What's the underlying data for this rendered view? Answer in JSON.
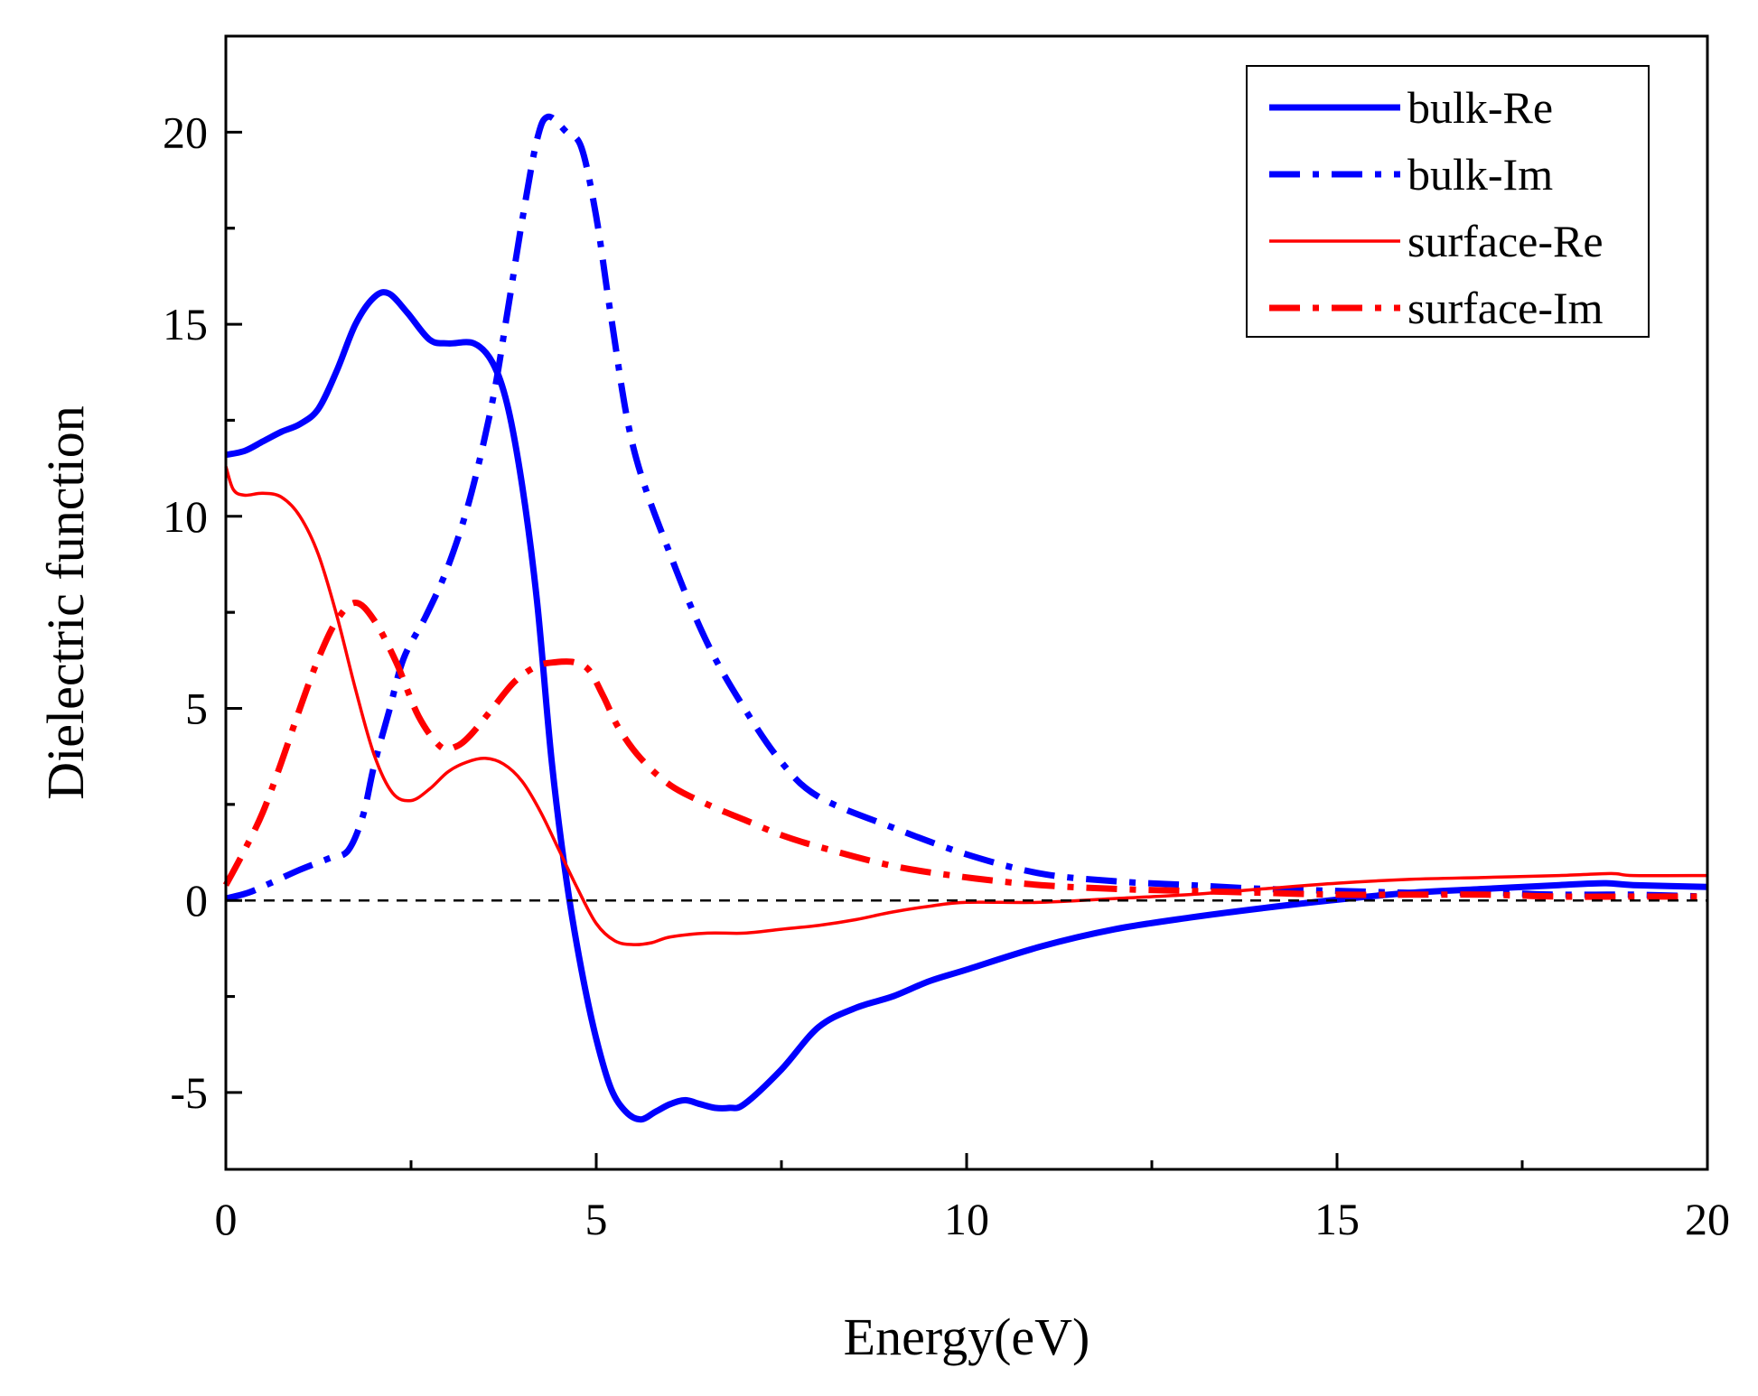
{
  "chart_data": {
    "type": "line",
    "title": "",
    "xlabel": "Energy(eV)",
    "ylabel": "Dielectric function",
    "xlim": [
      0,
      20
    ],
    "ylim": [
      -7,
      22.5
    ],
    "xticks": [
      0,
      5,
      10,
      15,
      20
    ],
    "xtick_labels": [
      "0",
      "5",
      "10",
      "15",
      "20"
    ],
    "yticks": [
      -5,
      0,
      5,
      10,
      15,
      20
    ],
    "ytick_labels": [
      "-5",
      "0",
      "5",
      "10",
      "15",
      "20"
    ],
    "grid": false,
    "legend_position": "top-right",
    "reference_line": {
      "y": 0,
      "style": "dashed",
      "color": "#000000"
    },
    "series": [
      {
        "name": "bulk-Re",
        "color": "#0000FF",
        "style": "solid-thick",
        "x": [
          0,
          0.25,
          0.5,
          0.75,
          1,
          1.25,
          1.5,
          1.75,
          2,
          2.2,
          2.45,
          2.75,
          3.0,
          3.35,
          3.6,
          3.8,
          4.0,
          4.2,
          4.4,
          4.6,
          4.8,
          5.0,
          5.2,
          5.4,
          5.6,
          5.8,
          6.0,
          6.2,
          6.4,
          6.6,
          6.8,
          7.0,
          7.5,
          8.0,
          8.5,
          9.0,
          9.5,
          10,
          11,
          12,
          13,
          14,
          15,
          16,
          17,
          18,
          18.6,
          19,
          20
        ],
        "y": [
          11.6,
          11.7,
          11.95,
          12.2,
          12.4,
          12.8,
          13.8,
          15.0,
          15.7,
          15.8,
          15.3,
          14.6,
          14.5,
          14.5,
          14.0,
          12.9,
          10.8,
          7.8,
          3.6,
          0.5,
          -1.8,
          -3.6,
          -4.9,
          -5.5,
          -5.7,
          -5.5,
          -5.3,
          -5.2,
          -5.3,
          -5.4,
          -5.4,
          -5.3,
          -4.4,
          -3.3,
          -2.8,
          -2.5,
          -2.1,
          -1.8,
          -1.2,
          -0.75,
          -0.45,
          -0.2,
          0.02,
          0.2,
          0.3,
          0.4,
          0.45,
          0.4,
          0.35
        ]
      },
      {
        "name": "bulk-Im",
        "color": "#0000FF",
        "style": "dash-dot-thick",
        "x": [
          0,
          0.3,
          0.6,
          1.0,
          1.4,
          1.65,
          1.85,
          2.0,
          2.2,
          2.4,
          2.7,
          3.0,
          3.3,
          3.6,
          3.8,
          4.0,
          4.2,
          4.35,
          4.6,
          4.8,
          5.0,
          5.2,
          5.5,
          6.0,
          6.5,
          7.0,
          7.5,
          8.0,
          9.0,
          10.0,
          11.0,
          12.0,
          13.0,
          14.0,
          15.0,
          16.0,
          17.0,
          18.0,
          19.0,
          20.0
        ],
        "y": [
          0.05,
          0.2,
          0.45,
          0.8,
          1.1,
          1.3,
          2.2,
          3.5,
          4.9,
          6.3,
          7.4,
          8.7,
          10.5,
          13.0,
          15.3,
          17.7,
          19.8,
          20.4,
          20.0,
          19.6,
          17.8,
          15.2,
          11.8,
          9.0,
          6.7,
          5.0,
          3.6,
          2.7,
          1.9,
          1.2,
          0.7,
          0.5,
          0.4,
          0.3,
          0.25,
          0.2,
          0.2,
          0.15,
          0.15,
          0.1
        ]
      },
      {
        "name": "surface-Re",
        "color": "#FF0000",
        "style": "solid-thin",
        "x": [
          0,
          0.1,
          0.25,
          0.5,
          0.75,
          1.0,
          1.25,
          1.5,
          1.75,
          2.0,
          2.25,
          2.5,
          2.75,
          3.0,
          3.25,
          3.5,
          3.75,
          4.0,
          4.25,
          4.5,
          4.75,
          5.0,
          5.25,
          5.5,
          5.75,
          6.0,
          6.5,
          7.0,
          7.5,
          8.0,
          8.5,
          9.0,
          9.5,
          10.0,
          11.0,
          12.0,
          13.0,
          14.0,
          15.0,
          16.0,
          17.0,
          18.0,
          18.7,
          19.0,
          20.0
        ],
        "y": [
          11.3,
          10.7,
          10.55,
          10.6,
          10.5,
          10.0,
          9.0,
          7.4,
          5.5,
          3.8,
          2.8,
          2.6,
          2.9,
          3.35,
          3.6,
          3.7,
          3.55,
          3.1,
          2.3,
          1.3,
          0.3,
          -0.6,
          -1.05,
          -1.15,
          -1.1,
          -0.95,
          -0.85,
          -0.85,
          -0.75,
          -0.65,
          -0.5,
          -0.3,
          -0.15,
          -0.05,
          -0.05,
          0.05,
          0.15,
          0.3,
          0.45,
          0.55,
          0.6,
          0.65,
          0.7,
          0.65,
          0.65
        ]
      },
      {
        "name": "surface-Im",
        "color": "#FF0000",
        "style": "dash-dot-thick",
        "x": [
          0,
          0.25,
          0.5,
          0.75,
          1.0,
          1.25,
          1.5,
          1.75,
          2.0,
          2.3,
          2.6,
          2.9,
          3.1,
          3.3,
          3.6,
          3.9,
          4.2,
          4.45,
          4.7,
          4.9,
          5.1,
          5.3,
          5.6,
          6.0,
          6.5,
          7.0,
          7.5,
          8.0,
          9.0,
          10.0,
          11.0,
          12.0,
          13.0,
          14.0,
          15.0,
          16.0,
          17.0,
          18.0,
          19.0,
          20.0
        ],
        "y": [
          0.4,
          1.3,
          2.3,
          3.6,
          5.0,
          6.3,
          7.3,
          7.75,
          7.3,
          6.2,
          4.8,
          4.0,
          4.0,
          4.3,
          5.0,
          5.7,
          6.1,
          6.2,
          6.2,
          6.0,
          5.3,
          4.5,
          3.7,
          3.0,
          2.5,
          2.1,
          1.7,
          1.4,
          0.9,
          0.6,
          0.4,
          0.3,
          0.25,
          0.2,
          0.15,
          0.15,
          0.15,
          0.1,
          0.1,
          0.1
        ]
      }
    ]
  }
}
